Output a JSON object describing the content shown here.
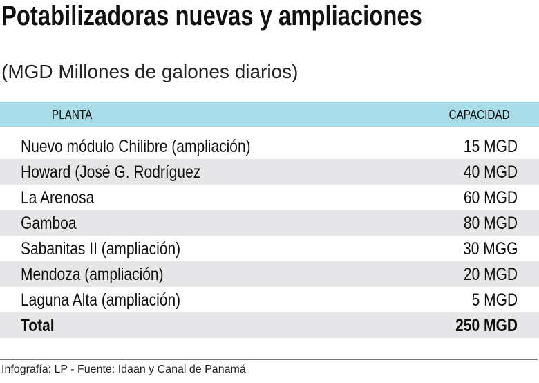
{
  "title": "Potabilizadoras nuevas y ampliaciones",
  "subtitle": "(MGD Millones de galones diarios)",
  "colors": {
    "header_band": "#a8dce8",
    "alt_row": "#e6e6e8",
    "text": "#111111"
  },
  "chart_data": {
    "type": "table",
    "title": "Potabilizadoras nuevas y ampliaciones",
    "subtitle": "(MGD Millones de galones diarios)",
    "columns": [
      "PLANTA",
      "CAPACIDAD"
    ],
    "rows": [
      {
        "planta": "Nuevo módulo Chilibre (ampliación)",
        "capacidad": "15 MGD"
      },
      {
        "planta": "Howard (José G. Rodríguez",
        "capacidad": "40 MGD"
      },
      {
        "planta": "La Arenosa",
        "capacidad": "60 MGD"
      },
      {
        "planta": "Gamboa",
        "capacidad": "80 MGD"
      },
      {
        "planta": "Sabanitas II (ampliación)",
        "capacidad": "30 MGG"
      },
      {
        "planta": "Mendoza (ampliación)",
        "capacidad": "20 MGD"
      },
      {
        "planta": "Laguna Alta (ampliación)",
        "capacidad": "5 MGD"
      }
    ],
    "total": {
      "label": "Total",
      "capacidad": "250 MGD"
    }
  },
  "source": "Infografía: LP - Fuente: Idaan y Canal de Panamá"
}
